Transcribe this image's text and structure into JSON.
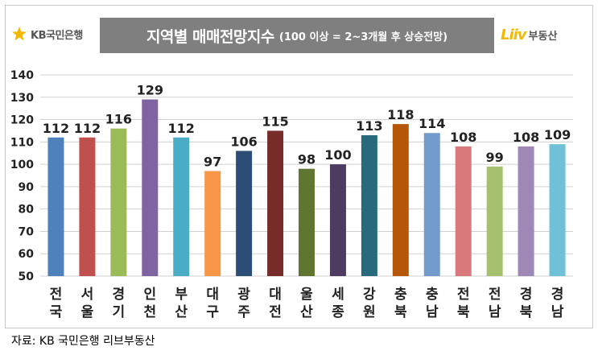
{
  "header": {
    "kb_brand": "KB국민은행",
    "title_main": "지역별 매매전망지수",
    "title_note": "(100 이상 = 2~3개월 후 상승전망)",
    "liiv_word": "Liiv",
    "liiv_brand": "부동산"
  },
  "source": "자료: KB 국민은행  리브부동산",
  "colors": {
    "gridline": "#d0d0d0",
    "title_bg": "#7f7f7f"
  },
  "chart_data": {
    "type": "bar",
    "title": "지역별 매매전망지수 (100 이상 = 2~3개월 후 상승전망)",
    "xlabel": "",
    "ylabel": "",
    "ylim": [
      50,
      140
    ],
    "yticks": [
      50,
      60,
      70,
      80,
      90,
      100,
      110,
      120,
      130,
      140
    ],
    "grid": true,
    "categories": [
      {
        "line1": "전",
        "line2": "국"
      },
      {
        "line1": "서",
        "line2": "울"
      },
      {
        "line1": "경",
        "line2": "기"
      },
      {
        "line1": "인",
        "line2": "천"
      },
      {
        "line1": "부",
        "line2": "산"
      },
      {
        "line1": "대",
        "line2": "구"
      },
      {
        "line1": "광",
        "line2": "주"
      },
      {
        "line1": "대",
        "line2": "전"
      },
      {
        "line1": "울",
        "line2": "산"
      },
      {
        "line1": "세",
        "line2": "종"
      },
      {
        "line1": "강",
        "line2": "원"
      },
      {
        "line1": "충",
        "line2": "북"
      },
      {
        "line1": "충",
        "line2": "남"
      },
      {
        "line1": "전",
        "line2": "북"
      },
      {
        "line1": "전",
        "line2": "남"
      },
      {
        "line1": "경",
        "line2": "북"
      },
      {
        "line1": "경",
        "line2": "남"
      }
    ],
    "values": [
      112,
      112,
      116,
      129,
      112,
      97,
      106,
      115,
      98,
      100,
      113,
      118,
      114,
      108,
      99,
      108,
      109
    ],
    "bar_colors": [
      "#4f81bd",
      "#c0504d",
      "#9bbb59",
      "#8064a2",
      "#4bacc6",
      "#f79646",
      "#2c4d75",
      "#772c2a",
      "#5f7530",
      "#4d3b62",
      "#276a7c",
      "#b65708",
      "#729aca",
      "#d9797b",
      "#a5c16e",
      "#9e88b6",
      "#6ec1d6"
    ]
  }
}
